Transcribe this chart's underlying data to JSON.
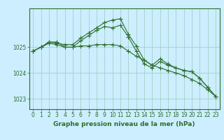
{
  "xlabel": "Graphe pression niveau de la mer (hPa)",
  "background_color": "#cceeff",
  "grid_color": "#99ccbb",
  "line_color": "#2d6e2d",
  "ylim": [
    1022.6,
    1026.5
  ],
  "xlim": [
    -0.5,
    23.5
  ],
  "yticks": [
    1023,
    1024,
    1025
  ],
  "xticks": [
    0,
    1,
    2,
    3,
    4,
    5,
    6,
    7,
    8,
    9,
    10,
    11,
    12,
    13,
    14,
    15,
    16,
    17,
    18,
    19,
    20,
    21,
    22,
    23
  ],
  "series": [
    [
      1024.85,
      1025.0,
      1025.2,
      1025.2,
      1025.0,
      1025.0,
      1025.25,
      1025.45,
      1025.65,
      1025.8,
      1025.75,
      1025.85,
      1025.4,
      1024.85,
      1024.35,
      1024.2,
      1024.45,
      1024.3,
      1024.2,
      1024.1,
      1024.05,
      1023.8,
      1023.45,
      1023.1
    ],
    [
      1024.85,
      1025.0,
      1025.2,
      1025.15,
      1025.1,
      1025.1,
      1025.35,
      1025.55,
      1025.75,
      1025.95,
      1026.05,
      1026.1,
      1025.5,
      1025.05,
      1024.5,
      1024.3,
      1024.55,
      1024.35,
      1024.2,
      1024.1,
      1024.05,
      1023.8,
      1023.45,
      1023.1
    ],
    [
      1024.85,
      1025.0,
      1025.15,
      1025.1,
      1025.0,
      1025.0,
      1025.05,
      1025.05,
      1025.1,
      1025.1,
      1025.1,
      1025.05,
      1024.85,
      1024.65,
      1024.5,
      1024.3,
      1024.2,
      1024.1,
      1024.0,
      1023.9,
      1023.75,
      1023.6,
      1023.35,
      1023.1
    ]
  ],
  "marker": "+",
  "markersize": 4,
  "linewidth": 0.8,
  "tick_fontsize": 5.5,
  "xlabel_fontsize": 6.5
}
